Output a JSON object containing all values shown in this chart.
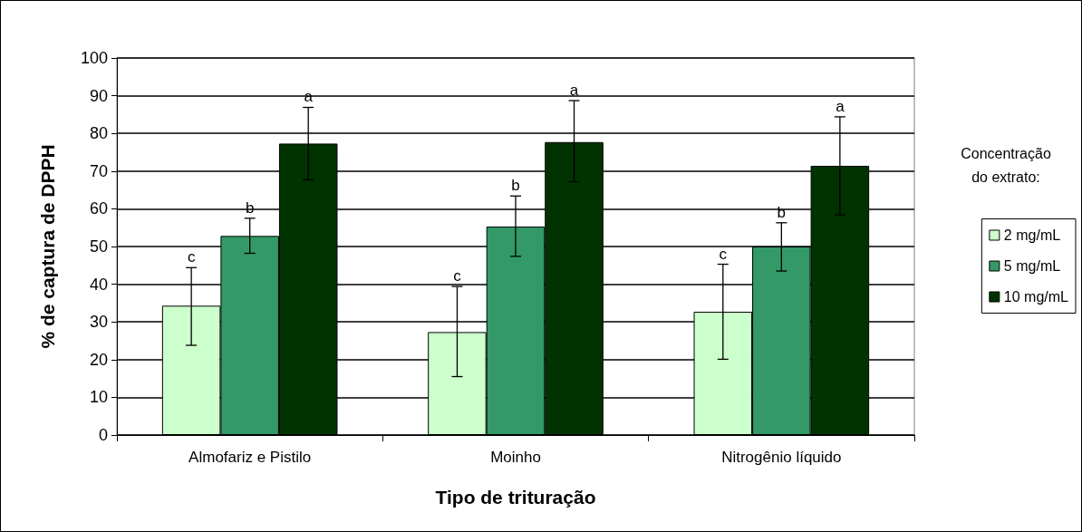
{
  "chart_data": {
    "type": "bar",
    "xlabel": "Tipo de trituração",
    "ylabel": "% de captura de DPPH",
    "legend_title": "Concentração\ndo extrato:",
    "categories": [
      "Almofariz e Pistilo",
      "Moinho",
      "Nitrogênio líquido"
    ],
    "series": [
      {
        "name": "2 mg/mL",
        "color": "#ccffcc",
        "values": [
          34.3,
          27.3,
          32.7
        ],
        "errors": [
          [
            23.8,
            44.4
          ],
          [
            15.5,
            39.4
          ],
          [
            20.1,
            45.3
          ]
        ]
      },
      {
        "name": "5 mg/mL",
        "color": "#339966",
        "values": [
          52.8,
          55.3,
          50
        ],
        "errors": [
          [
            48.2,
            57.5
          ],
          [
            47.4,
            63.4
          ],
          [
            43.5,
            56.3
          ]
        ]
      },
      {
        "name": "10 mg/mL",
        "color": "#003300",
        "values": [
          77.3,
          77.7,
          71.4
        ],
        "errors": [
          [
            67.7,
            86.9
          ],
          [
            67.2,
            88.7
          ],
          [
            58.4,
            84.4
          ]
        ]
      }
    ],
    "ylim": [
      0,
      100
    ],
    "yticks": [
      0,
      10,
      20,
      30,
      40,
      50,
      60,
      70,
      80,
      90,
      100
    ],
    "grid": "y",
    "legend": "right",
    "annotations": [
      "c",
      "b",
      "a",
      "c",
      "b",
      "a",
      "c",
      "b",
      "a"
    ]
  }
}
